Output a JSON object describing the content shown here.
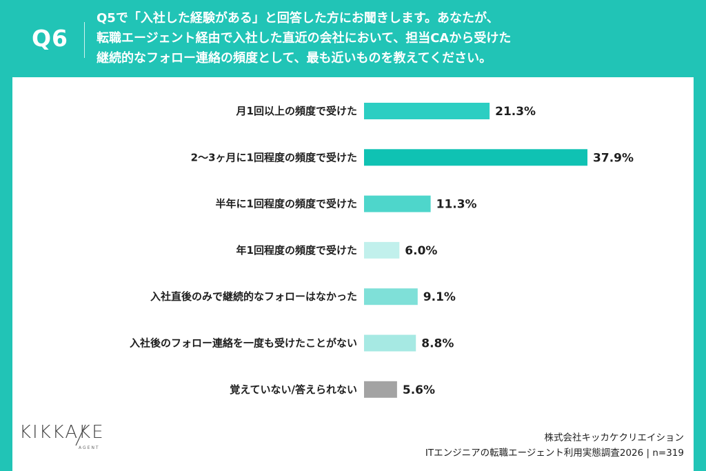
{
  "header": {
    "question_number": "Q6",
    "question_lines": [
      "Q5で「入社した経験がある」と回答した方にお聞きします。あなたが、",
      "転職エージェント経由で入社した直近の会社において、担当CAから受けた",
      "継続的なフォロー連絡の頻度として、最も近いものを教えてください。"
    ]
  },
  "colors": {
    "accent": "#21c4b6",
    "gray": "#a3a3a3"
  },
  "chart_data": {
    "type": "bar",
    "orientation": "horizontal",
    "unit": "%",
    "categories": [
      "月1回以上の頻度で受けた",
      "2〜3ヶ月に1回程度の頻度で受けた",
      "半年に1回程度の頻度で受けた",
      "年1回程度の頻度で受けた",
      "入社直後のみで継続的なフォローはなかった",
      "入社後のフォロー連絡を一度も受けたことがない",
      "覚えていない/答えられない"
    ],
    "values": [
      21.3,
      37.9,
      11.3,
      6.0,
      9.1,
      8.8,
      5.6
    ],
    "value_labels": [
      "21.3%",
      "37.9%",
      "11.3%",
      "6.0%",
      "9.1%",
      "8.8%",
      "5.6%"
    ],
    "bar_colors": [
      "#2ccec2",
      "#0fc2b3",
      "#4ed6cb",
      "#c1f0ec",
      "#7fe0d8",
      "#a6e9e3",
      "#a3a3a3"
    ],
    "xlim": [
      0,
      40
    ]
  },
  "logo": {
    "wordmark": "KIKKAKE",
    "sub": "AGENT"
  },
  "footer": {
    "company": "株式会社キッカケクリエイション",
    "survey": "ITエンジニアの転職エージェント利用実態調査2026 | n=319"
  }
}
